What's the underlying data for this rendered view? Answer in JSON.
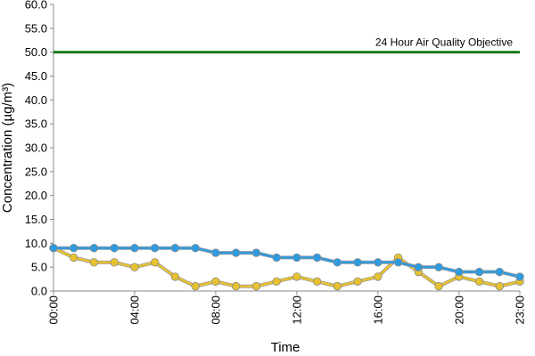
{
  "chart_data": {
    "type": "line",
    "xlabel": "Time",
    "ylabel": "Concentration (µg/m³)",
    "ylim": [
      0,
      60
    ],
    "y_ticks": [
      "0.0",
      "5.0",
      "10.0",
      "15.0",
      "20.0",
      "25.0",
      "30.0",
      "35.0",
      "40.0",
      "45.0",
      "50.0",
      "55.0",
      "60.0"
    ],
    "x_tick_labels": [
      "00:00",
      "04:00",
      "08:00",
      "12:00",
      "16:00",
      "20:00",
      "23:00"
    ],
    "x_tick_hours": [
      0,
      4,
      8,
      12,
      16,
      20,
      23
    ],
    "grid": false,
    "hours": [
      0,
      1,
      2,
      3,
      4,
      5,
      6,
      7,
      8,
      9,
      10,
      11,
      12,
      13,
      14,
      15,
      16,
      17,
      18,
      19,
      20,
      21,
      22,
      23
    ],
    "series": [
      {
        "color": "#2e9be0",
        "values": [
          9,
          9,
          9,
          9,
          9,
          9,
          9,
          9,
          8,
          8,
          8,
          7,
          7,
          7,
          6,
          6,
          6,
          6,
          5,
          5,
          4,
          4,
          4,
          3
        ]
      },
      {
        "color": "#e8c22e",
        "values": [
          9,
          7,
          6,
          6,
          5,
          6,
          3,
          1,
          2,
          1,
          1,
          2,
          3,
          2,
          1,
          2,
          3,
          7,
          4,
          1,
          3,
          2,
          1,
          2
        ]
      }
    ],
    "reference_line": {
      "value": 50,
      "label": "24 Hour Air Quality Objective",
      "color": "#1a7a1a"
    }
  }
}
